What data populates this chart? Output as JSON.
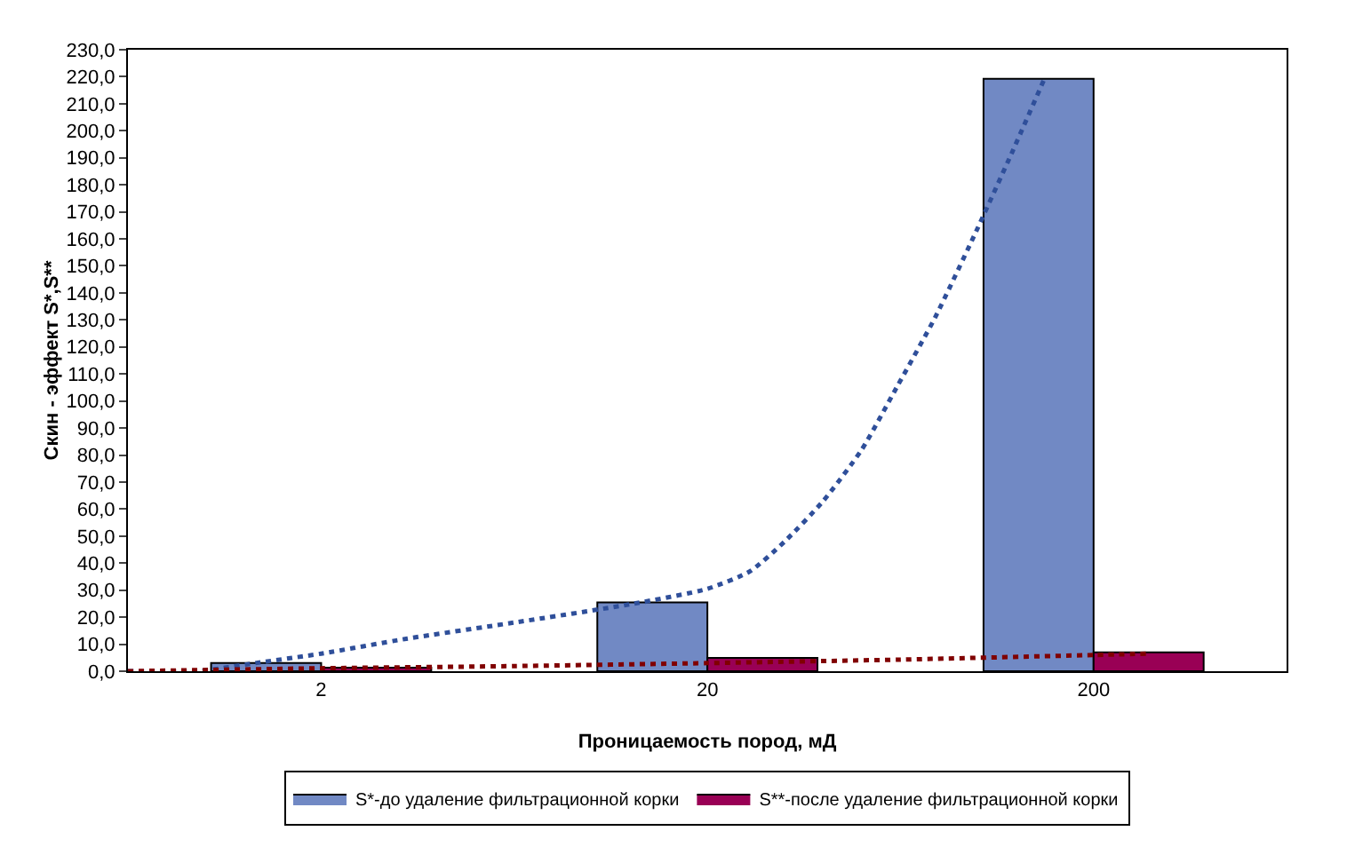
{
  "chart_data": {
    "type": "bar",
    "xlabel": "Проницаемость пород, мД",
    "ylabel": "Скин - эффект S*,S**",
    "x": [
      2,
      20,
      200
    ],
    "xlim": [
      0.632,
      632
    ],
    "xticks": [
      2,
      20,
      200
    ],
    "log": "x",
    "series": [
      {
        "name": "S*-до удаление фильтрационной корки",
        "color": "#7189c4",
        "values": [
          3.0,
          25.5,
          219.2
        ]
      },
      {
        "name": "S**-после удаление фильтрационной корки",
        "color": "#990055",
        "values": [
          1.3,
          4.9,
          7.0
        ]
      },
      {
        "type": "line",
        "line_style": "dotted",
        "color": "#2f4f9a",
        "x": [
          0.632,
          0.957,
          1.35,
          2,
          3.32,
          6.32,
          12.9,
          20,
          25.8,
          31.7,
          39.9,
          50.2,
          61.8,
          77.8,
          98,
          123,
          150
        ],
        "values": [
          0,
          0,
          3,
          6.5,
          12,
          18,
          25,
          30.5,
          37,
          48,
          63,
          82,
          105,
          131,
          161,
          192,
          220
        ]
      },
      {
        "type": "line",
        "line_style": "dotted",
        "color": "#800000",
        "x": [
          0.632,
          2,
          6.32,
          20,
          63.2,
          200,
          276
        ],
        "values": [
          0,
          1.1,
          1.9,
          3.0,
          4.3,
          6.0,
          6.5
        ]
      }
    ],
    "ylim": [
      0,
      230
    ],
    "yticks": [
      {
        "value": 0,
        "label": "0,0"
      },
      {
        "value": 10,
        "label": "10,0"
      },
      {
        "value": 20,
        "label": "20,0"
      },
      {
        "value": 30,
        "label": "30,0"
      },
      {
        "value": 40,
        "label": "40,0"
      },
      {
        "value": 50,
        "label": "50,0"
      },
      {
        "value": 60,
        "label": "60,0"
      },
      {
        "value": 70,
        "label": "70,0"
      },
      {
        "value": 80,
        "label": "80,0"
      },
      {
        "value": 90,
        "label": "90,0"
      },
      {
        "value": 100,
        "label": "100,0"
      },
      {
        "value": 110,
        "label": "110,0"
      },
      {
        "value": 120,
        "label": "120,0"
      },
      {
        "value": 130,
        "label": "130,0"
      },
      {
        "value": 140,
        "label": "140,0"
      },
      {
        "value": 150,
        "label": "150,0"
      },
      {
        "value": 160,
        "label": "160,0"
      },
      {
        "value": 170,
        "label": "170,0"
      },
      {
        "value": 180,
        "label": "180,0"
      },
      {
        "value": 190,
        "label": "190,0"
      },
      {
        "value": 200,
        "label": "200,0"
      },
      {
        "value": 210,
        "label": "210,0"
      },
      {
        "value": 220,
        "label": "220,0"
      },
      {
        "value": 230,
        "label": "230,0"
      }
    ],
    "grid": false,
    "legend": "bottom",
    "marker": "none"
  }
}
